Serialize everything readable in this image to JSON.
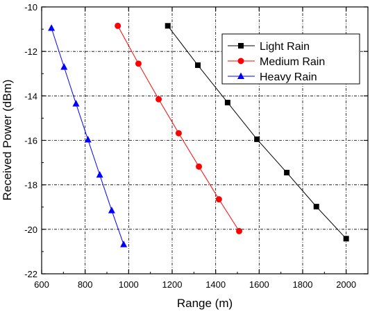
{
  "chart_data": {
    "type": "line",
    "title": "",
    "xlabel": "Range (m)",
    "ylabel": "Received Power (dBm)",
    "xlim": [
      600,
      2100
    ],
    "ylim": [
      -22,
      -10
    ],
    "xticks": [
      600,
      800,
      1000,
      1200,
      1400,
      1600,
      1800,
      2000
    ],
    "yticks": [
      -22,
      -20,
      -18,
      -16,
      -14,
      -12,
      -10
    ],
    "grid": true,
    "legend_position": "top-right",
    "series": [
      {
        "name": "Light Rain",
        "color": "#000000",
        "marker": "square",
        "x": [
          1180,
          1318,
          1455,
          1590,
          1727,
          1863,
          2000
        ],
        "y": [
          -10.85,
          -12.62,
          -14.3,
          -15.95,
          -17.45,
          -18.98,
          -20.42
        ]
      },
      {
        "name": "Medium Rain",
        "color": "#ff0000",
        "marker": "circle",
        "x": [
          950,
          1045,
          1138,
          1230,
          1323,
          1415,
          1508
        ],
        "y": [
          -10.85,
          -12.55,
          -14.15,
          -15.68,
          -17.18,
          -18.65,
          -20.08
        ]
      },
      {
        "name": "Heavy Rain",
        "color": "#0000ff",
        "marker": "triangle",
        "x": [
          645,
          703,
          758,
          813,
          867,
          922,
          977
        ],
        "y": [
          -10.95,
          -12.7,
          -14.35,
          -15.97,
          -17.55,
          -19.15,
          -20.68
        ]
      }
    ]
  }
}
